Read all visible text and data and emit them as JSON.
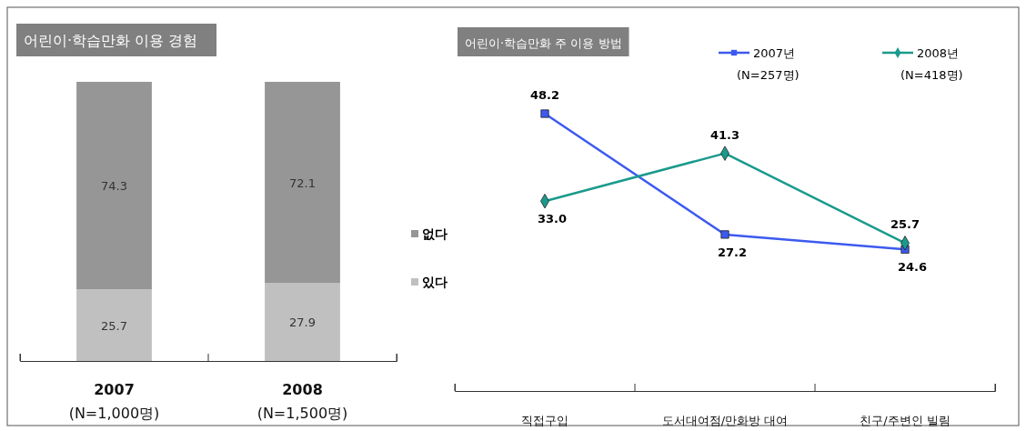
{
  "chart_data": [
    {
      "type": "bar",
      "title": "어린이·학습만화 이용 경험",
      "categories": [
        "2007\n(N=1,000명)",
        "2008\n(N=1,500명)"
      ],
      "stacked": true,
      "series": [
        {
          "name": "있다",
          "color": "#c0c0c0",
          "values": [
            25.7,
            27.9
          ]
        },
        {
          "name": "없다",
          "color": "#969696",
          "values": [
            74.3,
            72.1
          ]
        }
      ],
      "tick_labels": "x",
      "data_labels": true,
      "legend": "right"
    },
    {
      "type": "line",
      "title": "어린이·학습만화 주 이용 방법",
      "categories": [
        "직접구입",
        "도서대여점/만화방 대여",
        "친구/주변인 빌림"
      ],
      "series": [
        {
          "name": "2007년\n(N=257명)",
          "color": "#3c5af0",
          "marker": "square",
          "values": [
            48.2,
            27.2,
            24.6
          ],
          "value_labels": [
            "48.2",
            "27.2",
            "24.6"
          ]
        },
        {
          "name": "2008년\n(N=418명)",
          "color": "#1a9a8c",
          "marker": "diamond",
          "values": [
            33.0,
            41.3,
            25.7
          ],
          "value_labels": [
            "33.0",
            "41.3",
            "25.7"
          ]
        }
      ],
      "tick_labels": "x",
      "legend": "top"
    }
  ]
}
